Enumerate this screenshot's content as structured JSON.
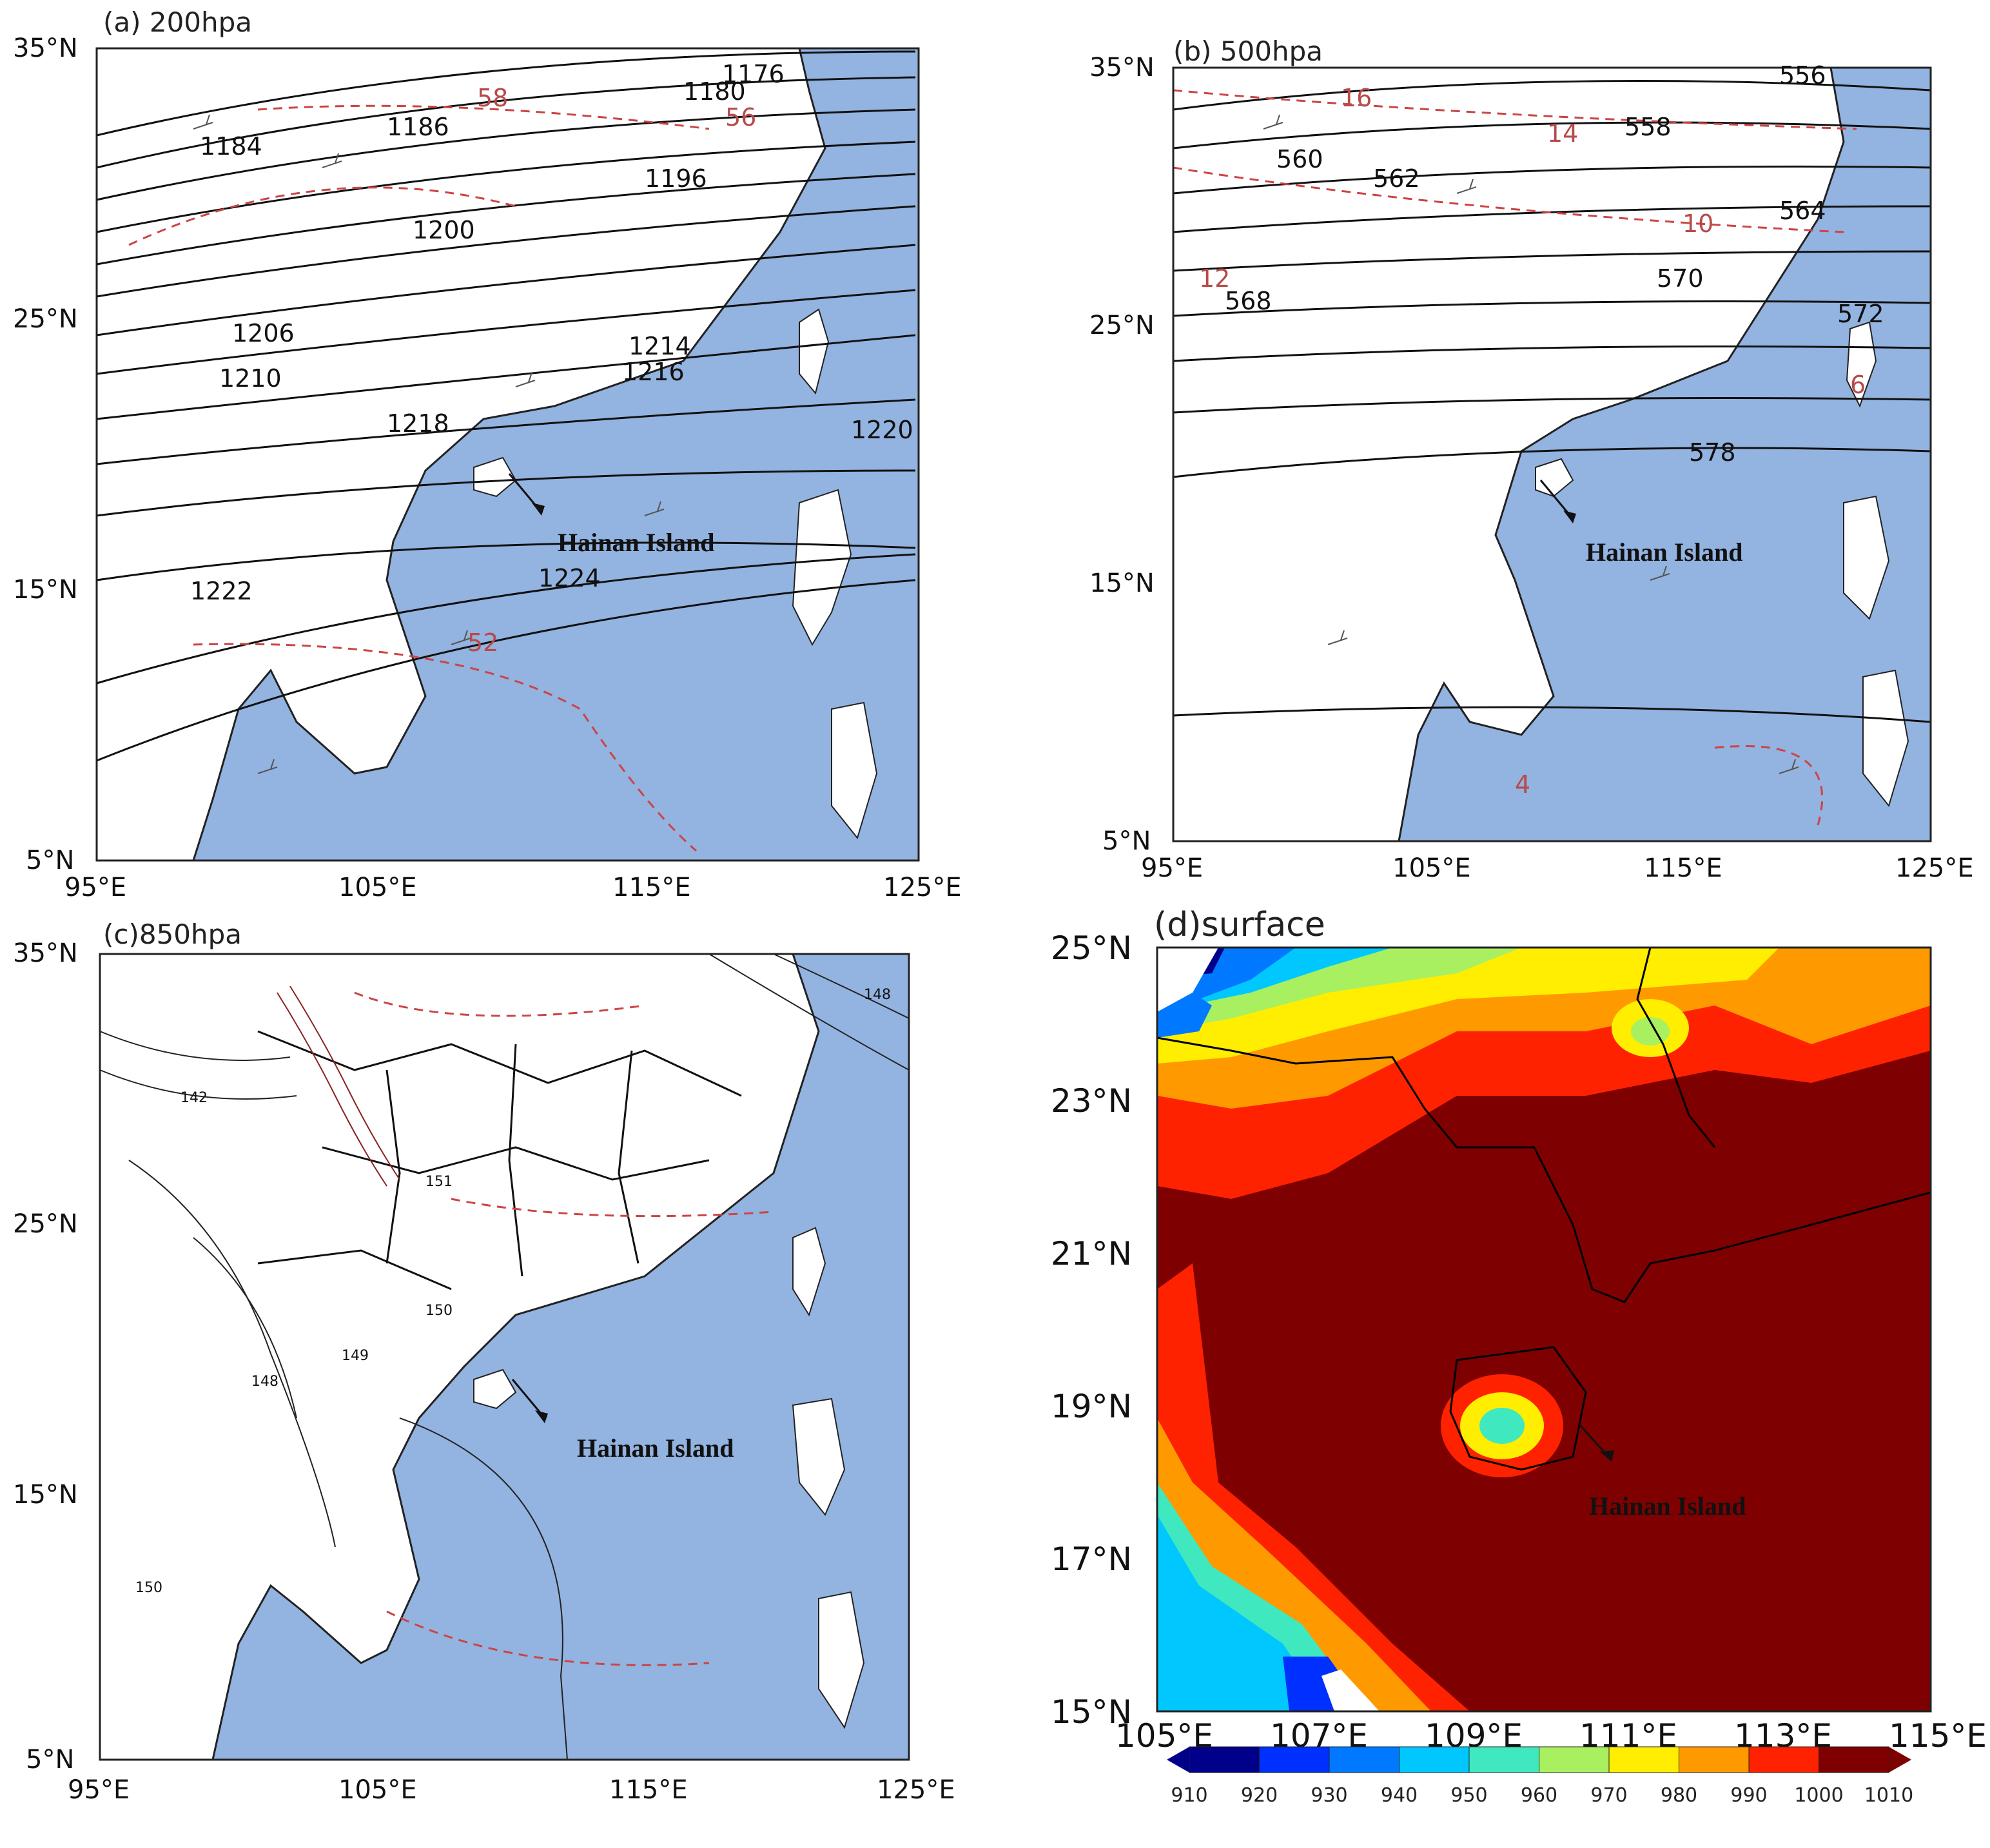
{
  "panels": {
    "a": {
      "title": "(a) 200hpa",
      "lat_ticks": [
        "35°N",
        "25°N",
        "15°N",
        "5°N"
      ],
      "lon_ticks": [
        "95°E",
        "105°E",
        "115°E",
        "125°E"
      ],
      "contour_labels": [
        "1176",
        "1180",
        "1184",
        "1186",
        "1196",
        "1200",
        "1206",
        "1210",
        "1214",
        "1216",
        "1218",
        "1220",
        "1222",
        "1224"
      ],
      "isotach_labels": [
        "58",
        "56",
        "52"
      ],
      "annotation": "Hainan Island"
    },
    "b": {
      "title": "(b) 500hpa",
      "lat_ticks": [
        "35°N",
        "25°N",
        "15°N",
        "5°N"
      ],
      "lon_ticks": [
        "95°E",
        "105°E",
        "115°E",
        "125°E"
      ],
      "contour_labels": [
        "556",
        "558",
        "560",
        "562",
        "564",
        "568",
        "570",
        "572",
        "578"
      ],
      "isotach_labels": [
        "16",
        "14",
        "12",
        "10",
        "6",
        "4"
      ],
      "annotation": "Hainan Island"
    },
    "c": {
      "title": "(c)850hpa",
      "lat_ticks": [
        "35°N",
        "25°N",
        "15°N",
        "5°N"
      ],
      "lon_ticks": [
        "95°E",
        "105°E",
        "115°E",
        "125°E"
      ],
      "contour_labels": [
        "148",
        "142",
        "151",
        "148",
        "149",
        "150",
        "150"
      ],
      "annotation": "Hainan Island"
    },
    "d": {
      "title": "(d)surface",
      "lat_ticks": [
        "25°N",
        "23°N",
        "21°N",
        "19°N",
        "17°N",
        "15°N"
      ],
      "lon_ticks": [
        "105°E",
        "107°E",
        "109°E",
        "111°E",
        "113°E",
        "115°E"
      ],
      "annotation": "Hainan Island",
      "colorbar": {
        "levels": [
          "910",
          "920",
          "930",
          "940",
          "950",
          "960",
          "970",
          "980",
          "990",
          "1000",
          "1010"
        ],
        "colors": [
          "#00008b",
          "#0030ff",
          "#0078ff",
          "#00c8ff",
          "#40e8c0",
          "#a8f060",
          "#ffee00",
          "#ff9900",
          "#ff2200",
          "#7f0000"
        ]
      }
    }
  },
  "colors": {
    "ocean": "#93b3e0",
    "land": "#ffffff",
    "isotach": "#cc4444",
    "contour": "#111111"
  }
}
